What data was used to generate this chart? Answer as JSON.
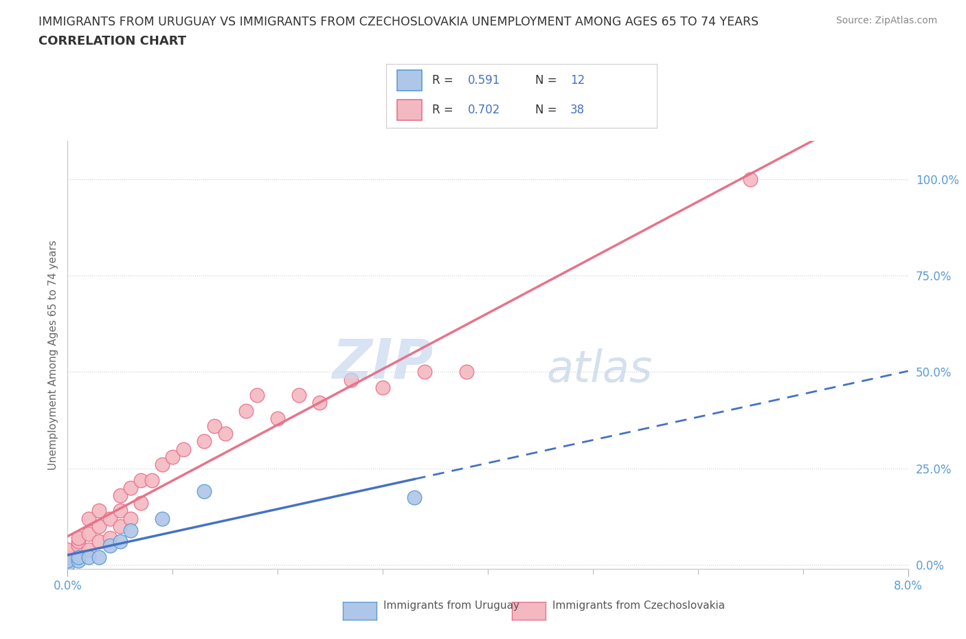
{
  "title_line1": "IMMIGRANTS FROM URUGUAY VS IMMIGRANTS FROM CZECHOSLOVAKIA UNEMPLOYMENT AMONG AGES 65 TO 74 YEARS",
  "title_line2": "CORRELATION CHART",
  "source": "Source: ZipAtlas.com",
  "ylabel": "Unemployment Among Ages 65 to 74 years",
  "xlim": [
    0.0,
    0.08
  ],
  "ylim": [
    -0.01,
    1.1
  ],
  "ytick_labels": [
    "0.0%",
    "25.0%",
    "50.0%",
    "75.0%",
    "100.0%"
  ],
  "ytick_values": [
    0.0,
    0.25,
    0.5,
    0.75,
    1.0
  ],
  "uruguay_color": "#aec6e8",
  "uruguay_edge_color": "#5b9bd5",
  "czechoslovakia_color": "#f4b8c1",
  "czechoslovakia_edge_color": "#e8728a",
  "uruguay_R": "0.591",
  "uruguay_N": "12",
  "czechoslovakia_R": "0.702",
  "czechoslovakia_N": "38",
  "legend_label_uruguay": "Immigrants from Uruguay",
  "legend_label_czechoslovakia": "Immigrants from Czechoslovakia",
  "uruguay_x": [
    0.0,
    0.0,
    0.001,
    0.001,
    0.002,
    0.003,
    0.004,
    0.005,
    0.006,
    0.009,
    0.013,
    0.033
  ],
  "uruguay_y": [
    0.0,
    0.01,
    0.01,
    0.02,
    0.02,
    0.02,
    0.05,
    0.06,
    0.09,
    0.12,
    0.19,
    0.175
  ],
  "czechoslovakia_x": [
    0.0,
    0.0,
    0.0,
    0.001,
    0.001,
    0.001,
    0.002,
    0.002,
    0.002,
    0.003,
    0.003,
    0.003,
    0.004,
    0.004,
    0.005,
    0.005,
    0.005,
    0.006,
    0.006,
    0.007,
    0.007,
    0.008,
    0.009,
    0.01,
    0.011,
    0.013,
    0.014,
    0.015,
    0.017,
    0.018,
    0.02,
    0.022,
    0.024,
    0.027,
    0.03,
    0.034,
    0.038,
    0.065
  ],
  "czechoslovakia_y": [
    0.01,
    0.02,
    0.04,
    0.05,
    0.06,
    0.07,
    0.04,
    0.08,
    0.12,
    0.06,
    0.1,
    0.14,
    0.07,
    0.12,
    0.1,
    0.14,
    0.18,
    0.12,
    0.2,
    0.16,
    0.22,
    0.22,
    0.26,
    0.28,
    0.3,
    0.32,
    0.36,
    0.34,
    0.4,
    0.44,
    0.38,
    0.44,
    0.42,
    0.48,
    0.46,
    0.5,
    0.5,
    1.0
  ],
  "grid_color": "#cccccc",
  "ytick_color": "#5b9bd5",
  "xtick_color": "#5b9bd5",
  "trend_uruguay_color": "#4472c4",
  "trend_czechoslovakia_color": "#e8728a",
  "bg_color": "#ffffff",
  "watermark_zip_color": "#c8d8ee",
  "watermark_atlas_color": "#b8cce4"
}
